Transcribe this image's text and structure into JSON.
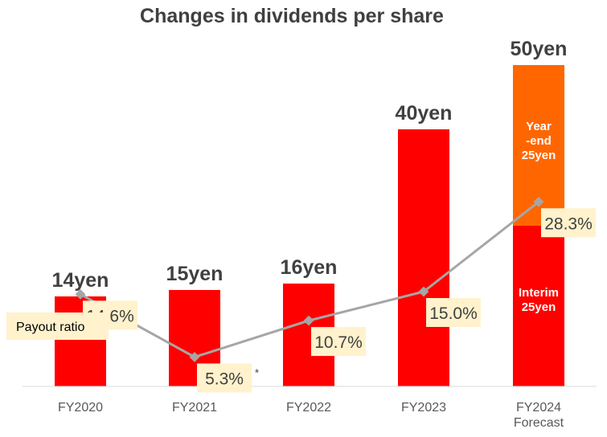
{
  "chart_data": {
    "type": "bar",
    "title": "Changes in dividends per share",
    "categories": [
      [
        "FY2020"
      ],
      [
        "FY2021"
      ],
      [
        "FY2022"
      ],
      [
        "FY2023"
      ],
      [
        "FY2024",
        "Forecast"
      ]
    ],
    "dividends": [
      14,
      15,
      16,
      40,
      50
    ],
    "total_labels": [
      "14yen",
      "15yen",
      "16yen",
      "40yen",
      "50yen"
    ],
    "forecast_breakdown": {
      "interim": {
        "value": 25,
        "label": [
          "Interim",
          "25yen"
        ],
        "color": "#ff0000"
      },
      "year_end": {
        "value": 25,
        "label": [
          "Year",
          "-end",
          "25yen"
        ],
        "color": "#ff6600"
      }
    },
    "bar_color": "#ff0000",
    "payout_ratio": {
      "name": "Payout ratio",
      "values": [
        14.6,
        5.3,
        10.7,
        15.0,
        28.3
      ],
      "labels": [
        "14.6%",
        "5.3%",
        "10.7%",
        "15.0%",
        "28.3%"
      ],
      "note_marks": [
        "",
        "*",
        "",
        "",
        ""
      ],
      "line_color": "#a6a6a6"
    }
  }
}
